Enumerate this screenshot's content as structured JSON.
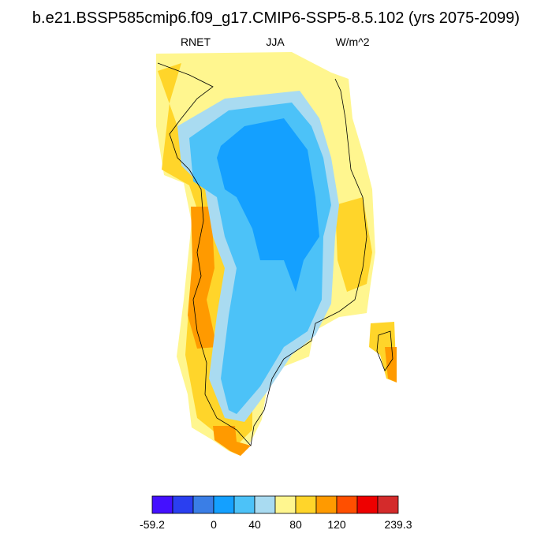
{
  "title": "b.e21.BSSP585cmip6.f09_g17.CMIP6-SSP5-8.5.102 (yrs 2075-2099)",
  "left_label": "RNET",
  "center_label": "JJA",
  "right_label": "W/m^2",
  "colorbar": {
    "colors": [
      "#4410ff",
      "#2a3ff0",
      "#3a7ee6",
      "#14a0ff",
      "#4cc2f8",
      "#a9dbf1",
      "#fff68f",
      "#ffd52a",
      "#ff9a00",
      "#ff4f00",
      "#ee0000",
      "#d42b2b"
    ],
    "min": -59.2,
    "max": 239.3,
    "levels": [
      -40,
      -20,
      0,
      20,
      40,
      60,
      80,
      100,
      120,
      140,
      160
    ],
    "ticks": [
      -59.2,
      0,
      40,
      80,
      120,
      239.3
    ]
  }
}
